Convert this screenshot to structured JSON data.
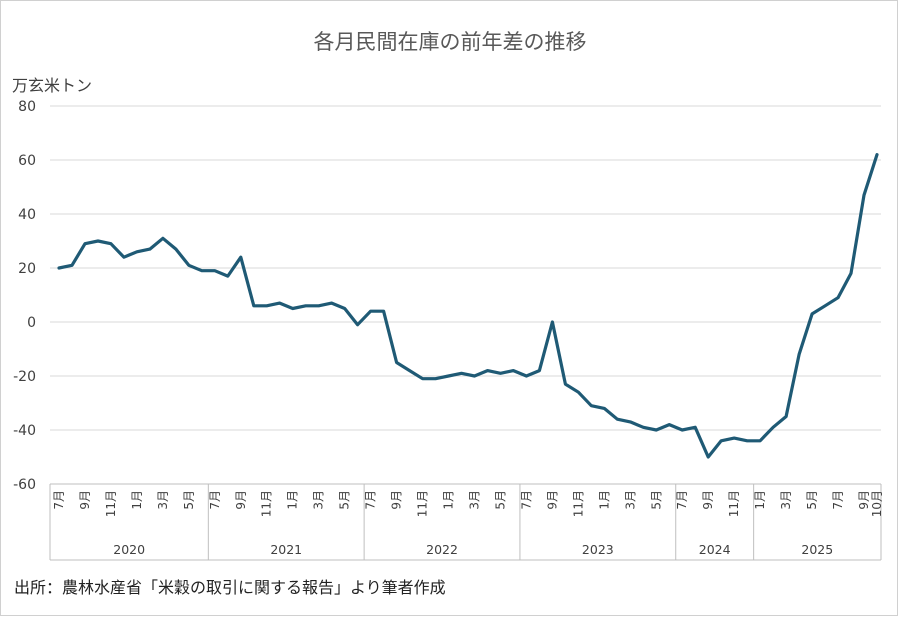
{
  "chart_data": {
    "type": "line",
    "title": "各月民間在庫の前年差の推移",
    "unit_label": "万玄米トン",
    "ylim": [
      -60,
      80
    ],
    "yticks": [
      -60,
      -40,
      -20,
      0,
      20,
      40,
      60,
      80
    ],
    "ytick_labels": [
      "-60",
      "-40",
      "-20",
      "0",
      "20",
      "40",
      "60",
      "80"
    ],
    "negative_tick_color": "#e00000",
    "grid": true,
    "line_color": "#1f5a75",
    "years": [
      {
        "label": "2020",
        "start": 0,
        "count": 12
      },
      {
        "label": "2021",
        "start": 12,
        "count": 12
      },
      {
        "label": "2022",
        "start": 24,
        "count": 12
      },
      {
        "label": "2023",
        "start": 36,
        "count": 12
      },
      {
        "label": "2024",
        "start": 48,
        "count": 6
      },
      {
        "label": "2025",
        "start": 54,
        "count": 10
      }
    ],
    "x_labels": [
      {
        "index": 0,
        "text": "7月"
      },
      {
        "index": 2,
        "text": "9月"
      },
      {
        "index": 4,
        "text": "11月"
      },
      {
        "index": 6,
        "text": "1月"
      },
      {
        "index": 8,
        "text": "3月"
      },
      {
        "index": 10,
        "text": "5月"
      },
      {
        "index": 12,
        "text": "7月"
      },
      {
        "index": 14,
        "text": "9月"
      },
      {
        "index": 16,
        "text": "11月"
      },
      {
        "index": 18,
        "text": "1月"
      },
      {
        "index": 20,
        "text": "3月"
      },
      {
        "index": 22,
        "text": "5月"
      },
      {
        "index": 24,
        "text": "7月"
      },
      {
        "index": 26,
        "text": "9月"
      },
      {
        "index": 28,
        "text": "11月"
      },
      {
        "index": 30,
        "text": "1月"
      },
      {
        "index": 32,
        "text": "3月"
      },
      {
        "index": 34,
        "text": "5月"
      },
      {
        "index": 36,
        "text": "7月"
      },
      {
        "index": 38,
        "text": "9月"
      },
      {
        "index": 40,
        "text": "11月"
      },
      {
        "index": 42,
        "text": "1月"
      },
      {
        "index": 44,
        "text": "3月"
      },
      {
        "index": 46,
        "text": "5月"
      },
      {
        "index": 48,
        "text": "7月"
      },
      {
        "index": 50,
        "text": "9月"
      },
      {
        "index": 52,
        "text": "11月"
      },
      {
        "index": 54,
        "text": "1月"
      },
      {
        "index": 56,
        "text": "3月"
      },
      {
        "index": 58,
        "text": "5月"
      },
      {
        "index": 60,
        "text": "7月"
      },
      {
        "index": 62,
        "text": "9月"
      },
      {
        "index": 63,
        "text": "10月"
      }
    ],
    "series": [
      {
        "values": [
          20,
          21,
          29,
          30,
          29,
          24,
          26,
          27,
          31,
          27,
          21,
          19,
          19,
          17,
          24,
          6,
          6,
          7,
          5,
          6,
          6,
          7,
          5,
          -1,
          4,
          4,
          -15,
          -18,
          -21,
          -21,
          -20,
          -19,
          -20,
          -18,
          -19,
          -18,
          -20,
          -18,
          0,
          -23,
          -26,
          -31,
          -32,
          -36,
          -37,
          -39,
          -40,
          -38,
          -40,
          -39,
          -50,
          -44,
          -43,
          -44,
          -44,
          -39,
          -35,
          -12,
          3,
          6,
          9,
          18,
          47,
          62
        ]
      }
    ]
  },
  "source_note": "出所：農林水産省「米穀の取引に関する報告」より筆者作成"
}
